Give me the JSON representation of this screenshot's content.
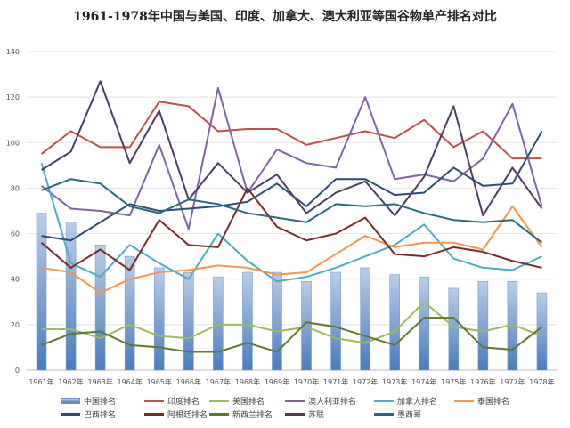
{
  "chart_data": {
    "type": "bar+line",
    "title": "1961-1978年中国与美国、印度、加拿大、澳大利亚等国谷物单产排名对比",
    "xlabel": "",
    "ylabel": "",
    "ylim": [
      0,
      140
    ],
    "yticks": [
      "0",
      "20",
      "40",
      "60",
      "80",
      "100",
      "120",
      "140"
    ],
    "categories": [
      "1961年",
      "1962年",
      "1963年",
      "1964年",
      "1965年",
      "1966年",
      "1967年",
      "1968年",
      "1969年",
      "1970年",
      "1971年",
      "1972年",
      "1973年",
      "1974年",
      "1975年",
      "1976年",
      "1977年",
      "1978年"
    ],
    "grid": true,
    "legend_position": "bottom",
    "series": [
      {
        "name": "中国排名",
        "kind": "bar",
        "color": "#4f81bd",
        "values": [
          69,
          65,
          55,
          50,
          45,
          43,
          41,
          43,
          43,
          39,
          43,
          45,
          42,
          41,
          36,
          39,
          39,
          34
        ]
      },
      {
        "name": "印度排名",
        "kind": "line",
        "color": "#c0504d",
        "values": [
          95,
          105,
          98,
          98,
          118,
          116,
          105,
          106,
          106,
          99,
          102,
          105,
          102,
          110,
          98,
          105,
          93,
          93
        ]
      },
      {
        "name": "美国排名",
        "kind": "line",
        "color": "#9bbb59",
        "values": [
          18,
          18,
          14,
          20,
          15,
          14,
          20,
          20,
          17,
          19,
          14,
          12,
          17,
          30,
          19,
          17,
          20,
          15
        ]
      },
      {
        "name": "澳大利亚排名",
        "kind": "line",
        "color": "#8064a2",
        "values": [
          81,
          71,
          70,
          68,
          99,
          62,
          124,
          78,
          97,
          91,
          89,
          120,
          84,
          86,
          83,
          93,
          117,
          72
        ]
      },
      {
        "name": "加拿大排名",
        "kind": "line",
        "color": "#4bacc6",
        "values": [
          91,
          47,
          41,
          55,
          47,
          40,
          60,
          48,
          39,
          41,
          45,
          50,
          55,
          64,
          49,
          45,
          44,
          50
        ]
      },
      {
        "name": "泰国排名",
        "kind": "line",
        "color": "#f79646",
        "values": [
          45,
          43,
          34,
          40,
          43,
          44,
          46,
          45,
          42,
          43,
          51,
          59,
          54,
          56,
          56,
          53,
          72,
          54
        ]
      },
      {
        "name": "巴西排名",
        "kind": "line",
        "color": "#2c4d75",
        "values": [
          59,
          57,
          65,
          73,
          70,
          71,
          72,
          74,
          82,
          72,
          84,
          84,
          77,
          78,
          89,
          81,
          82,
          105
        ]
      },
      {
        "name": "阿根廷排名",
        "kind": "line",
        "color": "#772c2a",
        "values": [
          56,
          45,
          53,
          44,
          66,
          55,
          54,
          80,
          63,
          57,
          60,
          67,
          51,
          50,
          54,
          52,
          48,
          45
        ]
      },
      {
        "name": "新西兰排名",
        "kind": "line",
        "color": "#5f7530",
        "values": [
          11,
          16,
          17,
          11,
          10,
          8,
          8,
          12,
          8,
          21,
          19,
          15,
          11,
          23,
          23,
          10,
          9,
          19
        ]
      },
      {
        "name": "苏联",
        "kind": "line",
        "color": "#4d3b62",
        "values": [
          88,
          96,
          127,
          91,
          114,
          75,
          91,
          78,
          86,
          69,
          78,
          83,
          68,
          85,
          116,
          68,
          89,
          71
        ]
      },
      {
        "name": "墨西哥",
        "kind": "line",
        "color": "#276a7c",
        "values": [
          79,
          84,
          82,
          72,
          69,
          75,
          73,
          69,
          67,
          65,
          73,
          72,
          73,
          69,
          66,
          65,
          66,
          56
        ]
      }
    ]
  }
}
